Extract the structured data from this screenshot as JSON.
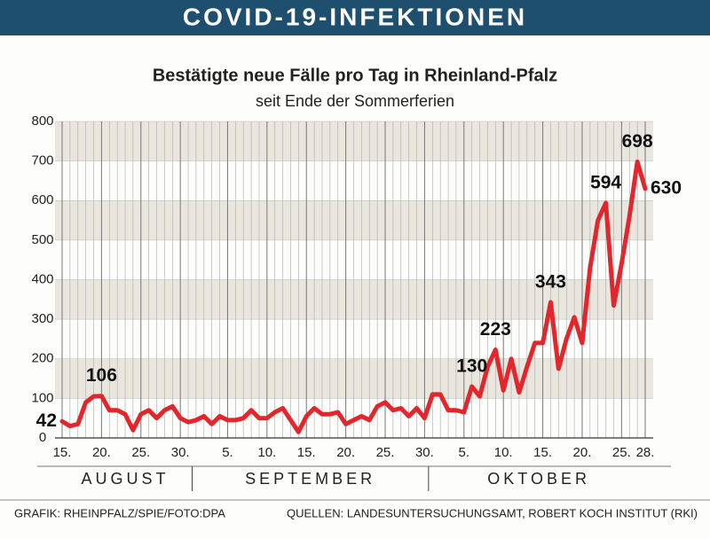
{
  "header": {
    "title": "COVID-19-INFEKTIONEN"
  },
  "chart_data": {
    "type": "line",
    "title": "Bestätigte neue Fälle pro Tag in Rheinland-Pfalz",
    "subtitle": "seit Ende der Sommerferien",
    "categories": [
      "15.",
      null,
      null,
      null,
      null,
      "20.",
      null,
      null,
      null,
      null,
      "25.",
      null,
      null,
      null,
      null,
      "30.",
      null,
      null,
      null,
      null,
      null,
      "5.",
      null,
      null,
      null,
      null,
      "10.",
      null,
      null,
      null,
      null,
      "15.",
      null,
      null,
      null,
      null,
      "20.",
      null,
      null,
      null,
      null,
      "25.",
      null,
      null,
      null,
      null,
      "30.",
      null,
      null,
      null,
      null,
      "5.",
      null,
      null,
      null,
      null,
      "10.",
      null,
      null,
      null,
      null,
      "15.",
      null,
      null,
      null,
      null,
      "20.",
      null,
      null,
      null,
      null,
      "25.",
      null,
      null,
      "28."
    ],
    "months": [
      "AUGUST",
      "SEPTEMBER",
      "OKTOBER"
    ],
    "values": [
      42,
      30,
      35,
      90,
      105,
      106,
      70,
      70,
      60,
      20,
      60,
      70,
      50,
      70,
      80,
      50,
      40,
      45,
      55,
      35,
      55,
      45,
      45,
      50,
      70,
      50,
      50,
      65,
      75,
      45,
      15,
      55,
      75,
      60,
      60,
      65,
      35,
      45,
      55,
      45,
      80,
      90,
      70,
      75,
      55,
      75,
      50,
      110,
      110,
      70,
      70,
      65,
      130,
      105,
      180,
      223,
      120,
      200,
      115,
      180,
      240,
      240,
      343,
      175,
      250,
      305,
      240,
      430,
      550,
      594,
      335,
      440,
      560,
      698,
      630
    ],
    "value_labels": [
      "42",
      null,
      null,
      null,
      null,
      "106",
      null,
      null,
      null,
      null,
      null,
      null,
      null,
      null,
      null,
      null,
      null,
      null,
      null,
      null,
      null,
      null,
      null,
      null,
      null,
      null,
      null,
      null,
      null,
      null,
      null,
      null,
      null,
      null,
      null,
      null,
      null,
      null,
      null,
      null,
      null,
      null,
      null,
      null,
      null,
      null,
      null,
      null,
      null,
      null,
      null,
      null,
      "130",
      null,
      null,
      "223",
      null,
      null,
      null,
      null,
      null,
      null,
      "343",
      null,
      null,
      null,
      null,
      null,
      null,
      "594",
      null,
      null,
      null,
      "698",
      "630"
    ],
    "color": "#e3262b",
    "ylim": [
      0,
      800
    ],
    "yticks": [
      0,
      100,
      200,
      300,
      400,
      500,
      600,
      700,
      800
    ],
    "grid": true
  },
  "footer": {
    "left": "GRAFIK: RHEINPFALZ/SPIE/FOTO:DPA",
    "right": "QUELLEN: LANDESUNTERSUCHUNGSAMT, ROBERT KOCH INSTITUT (RKI)"
  }
}
